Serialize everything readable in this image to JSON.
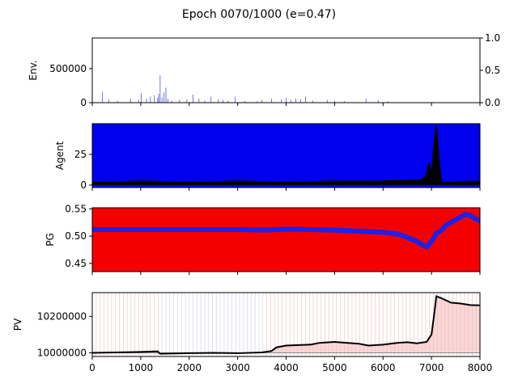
{
  "figure": {
    "title": "Epoch 0070/1000 (e=0.47)"
  },
  "colors": {
    "env_bar": "#3b3bd6",
    "agent_fill": "#0000ee",
    "pg_fill": "#f50000",
    "pg_line": "#2020e6",
    "pv_shade_red": "#f4b6b6",
    "pv_shade_blue": "#c8c8f0",
    "line": "#000000"
  },
  "chart_data": [
    {
      "id": "env",
      "type": "bar",
      "ylabel": "Env.",
      "xlim": [
        0,
        8000
      ],
      "ylim": [
        0,
        950000
      ],
      "yticks": [
        0,
        500000
      ],
      "ytick_labels": [
        "0",
        "500000"
      ],
      "right_ylim": [
        0,
        1
      ],
      "right_yticks": [
        0,
        0.5,
        1
      ],
      "right_ytick_labels": [
        "0.0",
        "0.5",
        "1.0"
      ],
      "x": [
        210,
        340,
        520,
        790,
        960,
        1010,
        1120,
        1200,
        1280,
        1350,
        1370,
        1400,
        1440,
        1480,
        1520,
        1560,
        1640,
        1800,
        1950,
        2080,
        2200,
        2320,
        2450,
        2600,
        2700,
        2800,
        2950,
        3150,
        3400,
        3500,
        3700,
        3900,
        4000,
        4100,
        4200,
        4300,
        4400,
        4550,
        4850,
        5000,
        5200,
        5650,
        5900,
        6100
      ],
      "values": [
        160000,
        50000,
        30000,
        60000,
        40000,
        140000,
        60000,
        90000,
        110000,
        70000,
        130000,
        400000,
        80000,
        150000,
        220000,
        60000,
        30000,
        40000,
        50000,
        120000,
        60000,
        30000,
        90000,
        50000,
        40000,
        30000,
        90000,
        25000,
        20000,
        40000,
        60000,
        50000,
        70000,
        40000,
        60000,
        50000,
        90000,
        30000,
        40000,
        30000,
        25000,
        60000,
        40000,
        20000
      ]
    },
    {
      "id": "agent",
      "type": "area",
      "ylabel": "Agent",
      "xlim": [
        0,
        8000
      ],
      "ylim": [
        -2,
        50
      ],
      "yticks": [
        0,
        25
      ],
      "ytick_labels": [
        "0",
        "25"
      ],
      "series": [
        {
          "name": "agent",
          "x": [
            0,
            1000,
            2000,
            3000,
            4000,
            5000,
            6000,
            6800,
            6900,
            6950,
            7000,
            7050,
            7100,
            7150,
            7200,
            7300,
            8000
          ],
          "values": [
            2,
            3,
            2,
            3,
            2,
            3,
            3,
            4,
            8,
            18,
            6,
            30,
            48,
            20,
            2,
            2,
            3
          ]
        }
      ]
    },
    {
      "id": "pg",
      "type": "line",
      "ylabel": "PG",
      "xlim": [
        0,
        8000
      ],
      "ylim": [
        0.435,
        0.552
      ],
      "yticks": [
        0.45,
        0.5,
        0.55
      ],
      "ytick_labels": [
        "0.45",
        "0.50",
        "0.55"
      ],
      "series": [
        {
          "name": "pg",
          "x": [
            0,
            1000,
            2000,
            3000,
            3600,
            4000,
            4500,
            5000,
            5500,
            6000,
            6300,
            6500,
            6700,
            6800,
            6900,
            7000,
            7100,
            7200,
            7300,
            7400,
            7500,
            7600,
            7700,
            7800,
            7900,
            8000
          ],
          "values": [
            0.512,
            0.512,
            0.512,
            0.512,
            0.511,
            0.513,
            0.512,
            0.511,
            0.509,
            0.507,
            0.504,
            0.498,
            0.49,
            0.485,
            0.48,
            0.49,
            0.505,
            0.51,
            0.52,
            0.525,
            0.53,
            0.535,
            0.54,
            0.538,
            0.532,
            0.528
          ]
        }
      ]
    },
    {
      "id": "pv",
      "type": "line",
      "ylabel": "PV",
      "xlim": [
        0,
        8000
      ],
      "ylim": [
        9980000,
        10330000
      ],
      "yticks": [
        10000000,
        10200000
      ],
      "ytick_labels": [
        "10000000",
        "10200000"
      ],
      "xticks": [
        0,
        1000,
        2000,
        3000,
        4000,
        5000,
        6000,
        7000,
        8000
      ],
      "xtick_labels": [
        "0",
        "1000",
        "2000",
        "3000",
        "4000",
        "5000",
        "6000",
        "7000",
        "8000"
      ],
      "series": [
        {
          "name": "pv",
          "x": [
            0,
            500,
            1000,
            1350,
            1400,
            2000,
            2500,
            3000,
            3500,
            3700,
            3800,
            4000,
            4500,
            4700,
            5000,
            5500,
            5700,
            6000,
            6300,
            6500,
            6700,
            6900,
            7000,
            7050,
            7100,
            7200,
            7400,
            7600,
            7800,
            8000
          ],
          "values": [
            10000000,
            10002000,
            10005000,
            10008000,
            9995000,
            9998000,
            10000000,
            9998000,
            10002000,
            10010000,
            10030000,
            10040000,
            10045000,
            10055000,
            10060000,
            10050000,
            10040000,
            10045000,
            10055000,
            10058000,
            10052000,
            10060000,
            10100000,
            10200000,
            10310000,
            10300000,
            10275000,
            10270000,
            10262000,
            10260000
          ]
        }
      ]
    }
  ]
}
